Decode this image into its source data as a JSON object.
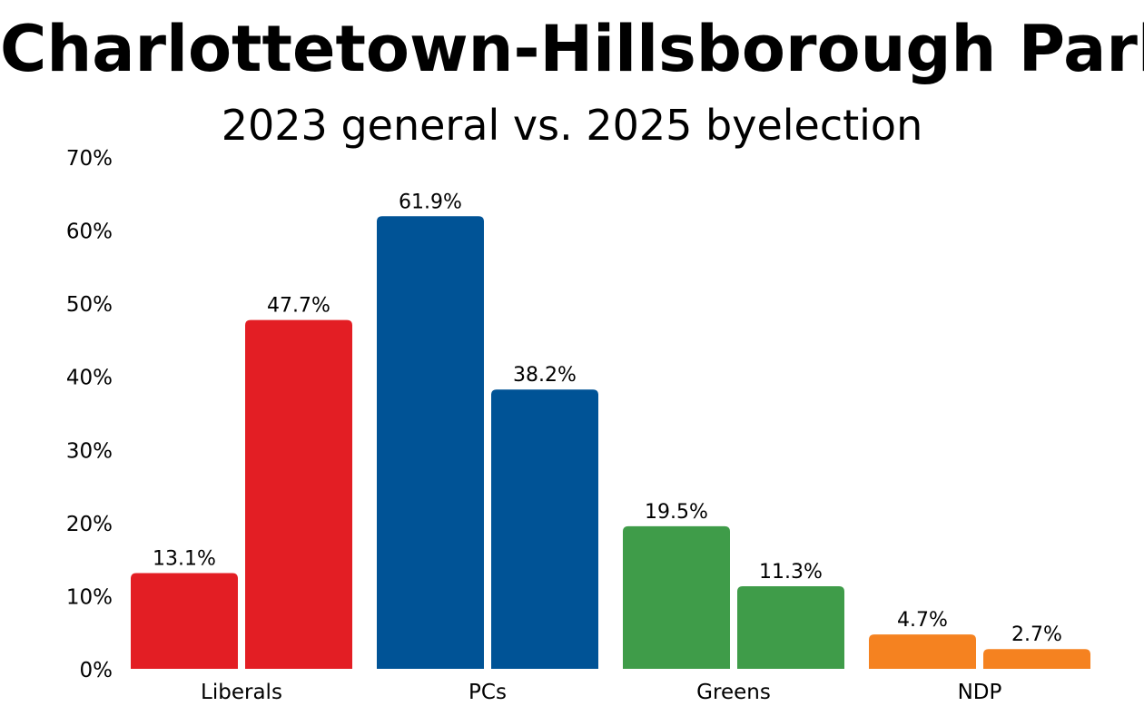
{
  "chart_data": {
    "type": "bar",
    "title": "Charlottetown-Hillsborough Park",
    "subtitle": "2023 general vs. 2025 byelection",
    "xlabel": "",
    "ylabel": "",
    "categories": [
      "Liberals",
      "PCs",
      "Greens",
      "NDP"
    ],
    "ylim": [
      0,
      70
    ],
    "y_ticks": [
      0,
      10,
      20,
      30,
      40,
      50,
      60,
      70
    ],
    "y_tick_labels": [
      "0%",
      "10%",
      "20%",
      "30%",
      "40%",
      "50%",
      "60%",
      "70%"
    ],
    "grid": false,
    "legend": "none",
    "bars": [
      {
        "category": "Liberals",
        "values": [
          13.1,
          47.7
        ],
        "labels": [
          "13.1%",
          "47.7%"
        ],
        "color": "#e31e24"
      },
      {
        "category": "PCs",
        "values": [
          61.9,
          38.2
        ],
        "labels": [
          "61.9%",
          "38.2%"
        ],
        "color": "#005396"
      },
      {
        "category": "Greens",
        "values": [
          19.5,
          11.3
        ],
        "labels": [
          "19.5%",
          "11.3%"
        ],
        "color": "#3f9c49"
      },
      {
        "category": "NDP",
        "values": [
          4.7,
          2.7
        ],
        "labels": [
          "4.7%",
          "2.7%"
        ],
        "color": "#f58220"
      }
    ]
  }
}
